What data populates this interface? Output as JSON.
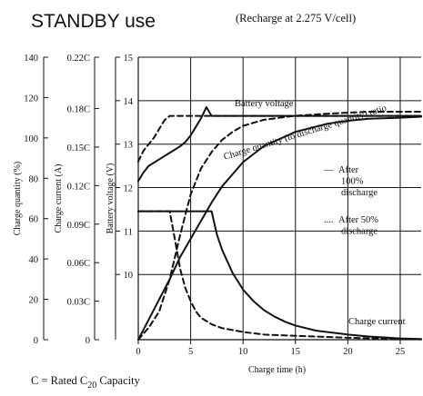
{
  "chart_data": {
    "type": "line",
    "title": "STANDBY use",
    "subtitle": "(Recharge at 2.275 V/cell)",
    "xlabel": "Charge time (h)",
    "xlim": [
      0,
      27
    ],
    "xticks": [
      "0",
      "5",
      "10",
      "15",
      "20",
      "25"
    ],
    "y_axes": [
      {
        "name": "Charge quantity (%)",
        "ylim": [
          0,
          140
        ],
        "ticks": [
          "0",
          "20",
          "40",
          "60",
          "80",
          "100",
          "120",
          "140"
        ]
      },
      {
        "name": "Charge current (A)",
        "ylim": [
          0,
          0.22
        ],
        "ticks": [
          "0",
          "0.03C",
          "0.06C",
          "0.09C",
          "0.12C",
          "0.15C",
          "0.18C",
          "0.22C"
        ]
      },
      {
        "name": "Battery voltage (V)",
        "ylim": [
          8.5,
          15
        ],
        "ticks": [
          "10",
          "11",
          "12",
          "13",
          "14",
          "15"
        ]
      }
    ],
    "grid": true,
    "series": [
      {
        "name": "Battery voltage",
        "case": "100%",
        "axis": "Battery voltage (V)",
        "style": "solid",
        "x": [
          0,
          0.5,
          1,
          2,
          3,
          4,
          4.5,
          5,
          5.5,
          6,
          6.5,
          7,
          10,
          15,
          20,
          25,
          27
        ],
        "y": [
          12.15,
          12.35,
          12.5,
          12.65,
          12.8,
          12.95,
          13.05,
          13.2,
          13.4,
          13.6,
          13.85,
          13.65,
          13.65,
          13.65,
          13.65,
          13.65,
          13.65
        ]
      },
      {
        "name": "Battery voltage",
        "case": "50%",
        "axis": "Battery voltage (V)",
        "style": "dashed",
        "x": [
          0,
          0.5,
          1,
          1.5,
          2,
          2.5,
          3,
          3.5,
          5,
          10,
          15,
          20,
          25,
          27
        ],
        "y": [
          12.6,
          12.85,
          13.0,
          13.15,
          13.35,
          13.55,
          13.65,
          13.65,
          13.65,
          13.65,
          13.65,
          13.65,
          13.65,
          13.65
        ]
      },
      {
        "name": "Charge quantity (to discharge quantity) ratio",
        "case": "100%",
        "axis": "Charge quantity (%)",
        "style": "solid",
        "x": [
          0,
          1,
          2,
          3,
          4,
          5,
          6,
          7,
          8,
          10,
          12,
          15,
          18,
          20,
          22,
          25,
          27
        ],
        "y": [
          0,
          10,
          20,
          30,
          41,
          50,
          59,
          68,
          76,
          88,
          96,
          103,
          107,
          108.5,
          109.5,
          110,
          110.5
        ]
      },
      {
        "name": "Charge quantity (to discharge quantity) ratio",
        "case": "50%",
        "axis": "Charge quantity (%)",
        "style": "dashed",
        "x": [
          0,
          1,
          2,
          3,
          4,
          5,
          6,
          7,
          8,
          9,
          10,
          12,
          15,
          18,
          20,
          22,
          25,
          27
        ],
        "y": [
          0,
          6,
          14,
          30,
          52,
          72,
          85,
          93,
          99,
          103,
          106,
          109,
          111,
          112,
          112.5,
          113,
          113,
          113
        ]
      },
      {
        "name": "Charge current",
        "case": "100%",
        "axis": "Charge current (A)",
        "style": "solid",
        "x": [
          0,
          7,
          7.5,
          8,
          9,
          10,
          11,
          12,
          13,
          14,
          15,
          17,
          20,
          22,
          25,
          27
        ],
        "y": [
          0.1,
          0.1,
          0.082,
          0.07,
          0.052,
          0.039,
          0.03,
          0.023,
          0.018,
          0.014,
          0.011,
          0.007,
          0.004,
          0.0025,
          0.001,
          0.0005
        ]
      },
      {
        "name": "Charge current",
        "case": "50%",
        "axis": "Charge current (A)",
        "style": "dashed",
        "x": [
          0,
          3,
          3.5,
          4,
          4.5,
          5,
          5.5,
          6,
          7,
          8,
          10,
          12,
          15,
          20,
          25,
          27
        ],
        "y": [
          0.1,
          0.1,
          0.078,
          0.055,
          0.04,
          0.03,
          0.022,
          0.017,
          0.012,
          0.009,
          0.006,
          0.004,
          0.003,
          0.0015,
          0.0005,
          0.0003
        ]
      }
    ],
    "annotations": {
      "voltage": "Battery voltage",
      "ratio": "Charge quantity (to discharge quantity) ratio",
      "current": "Charge current"
    },
    "legend": {
      "position": "right",
      "items": [
        {
          "style": "solid",
          "symbol": "—",
          "lines": [
            "After",
            "100%",
            "discharge"
          ]
        },
        {
          "style": "dashed",
          "symbol": "....",
          "lines": [
            "After 50%",
            "discharge"
          ]
        }
      ]
    },
    "footnote": {
      "text": "C = Rated C",
      "sub": "20",
      "after": " Capacity"
    }
  }
}
